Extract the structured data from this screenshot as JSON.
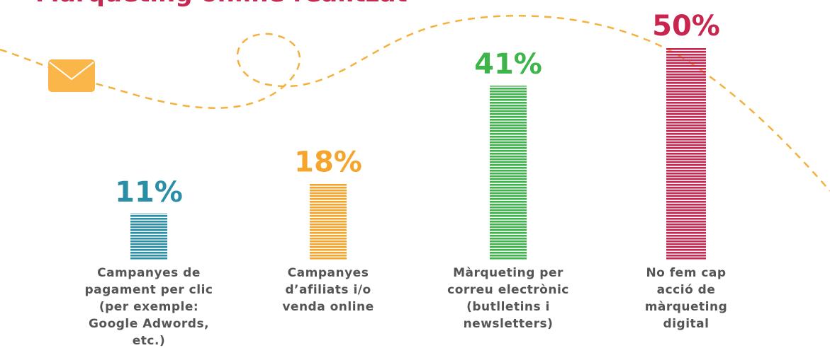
{
  "chart_data": {
    "type": "bar",
    "title": "Màrqueting online realitzat",
    "categories": [
      "Campanyes de pagament per clic (per exemple: Google Adwords, etc.)",
      "Campanyes d’afiliats i/o venda online",
      "Màrqueting per correu electrònic (butlletins i newsletters)",
      "No fem cap acció de màrqueting digital"
    ],
    "values": [
      11,
      18,
      41,
      50
    ],
    "value_labels": [
      "11%",
      "18%",
      "41%",
      "50%"
    ],
    "colors": [
      "#2a8fa6",
      "#f5a52b",
      "#3db54a",
      "#c8264f"
    ]
  }
}
